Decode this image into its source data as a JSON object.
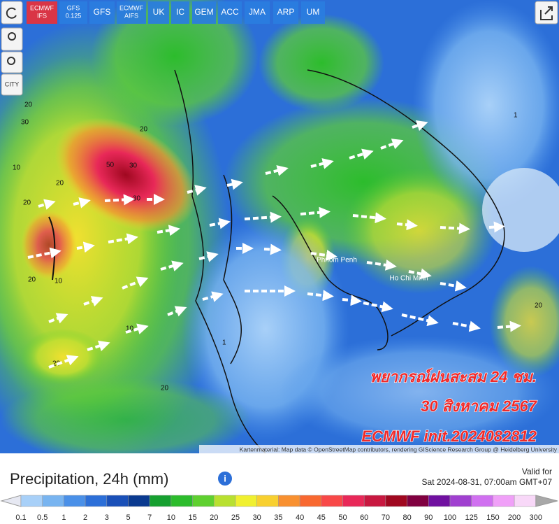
{
  "toolbar": {
    "models": [
      {
        "lines": [
          "ECMWF",
          "IFS"
        ],
        "active": true
      },
      {
        "lines": [
          "GFS",
          "0.125"
        ],
        "active": false
      },
      {
        "lines": [
          "GFS"
        ],
        "active": false
      },
      {
        "lines": [
          "ECMWF",
          "AIFS"
        ],
        "active": false
      },
      {
        "lines": [
          "UK"
        ],
        "active": false
      },
      {
        "lines": [
          "IC"
        ],
        "active": false
      },
      {
        "lines": [
          "GEM"
        ],
        "active": false
      },
      {
        "lines": [
          "ACC"
        ],
        "active": false
      },
      {
        "lines": [
          "JMA"
        ],
        "active": false
      },
      {
        "lines": [
          "ARP"
        ],
        "active": false
      },
      {
        "lines": [
          "UM"
        ],
        "active": false
      }
    ],
    "city_button": "CITY"
  },
  "map": {
    "place_labels": [
      "Phnom Penh",
      "Ho Chi Minh"
    ],
    "contour_labels": [
      "20",
      "30",
      "50",
      "30",
      "20",
      "10",
      "20",
      "30",
      "20",
      "10",
      "20",
      "20",
      "10",
      "20",
      "1",
      "20",
      "1"
    ],
    "overlay": [
      "พยากรณ์ฝนสะสม 24 ชม.",
      "30 สิงหาคม 2567",
      "ECMWF init.2024082812"
    ],
    "attribution": "Kartenmaterial: Map data © OpenStreetMap contributors, rendering GIScience Research Group @ Heidelberg University"
  },
  "legend": {
    "title": "Precipitation, 24h (mm)",
    "valid_for": "Valid for",
    "valid_time": "Sat 2024-08-31, 07:00am GMT+07",
    "labels": [
      "0.1",
      "0.5",
      "1",
      "2",
      "3",
      "5",
      "7",
      "10",
      "15",
      "20",
      "25",
      "30",
      "35",
      "40",
      "45",
      "50",
      "60",
      "70",
      "80",
      "90",
      "100",
      "125",
      "150",
      "200",
      "300"
    ],
    "low_color": "#e6e8f2",
    "colors": [
      "#a8d0f8",
      "#78b4f0",
      "#4a90e8",
      "#2c6fd8",
      "#1a50b8",
      "#0a3a90",
      "#16a030",
      "#2cbc2c",
      "#5fd030",
      "#b8e030",
      "#f0f030",
      "#f8d030",
      "#f89030",
      "#f86830",
      "#f84848",
      "#e82858",
      "#c81840",
      "#a00820",
      "#800040",
      "#7010a0",
      "#a040d0",
      "#d070f0",
      "#f0a0f8",
      "#f8d8f8"
    ],
    "high_color": "#a8a8a8"
  }
}
